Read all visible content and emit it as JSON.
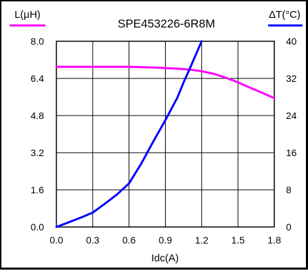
{
  "chart_data": {
    "type": "line",
    "title": "SPE453226-6R8M",
    "xlabel": "Idc(A)",
    "x_ticks": [
      "0.0",
      "0.3",
      "0.6",
      "0.9",
      "1.2",
      "1.5",
      "1.8"
    ],
    "xlim": [
      0,
      1.8
    ],
    "y_left": {
      "label": "L(μH)",
      "ticks": [
        "0.0",
        "1.6",
        "3.2",
        "4.8",
        "6.4",
        "8.0"
      ],
      "ylim": [
        0,
        8.0
      ],
      "color": "#ff00ff"
    },
    "y_right": {
      "label": "ΔT(°C)",
      "ticks": [
        "0",
        "8",
        "16",
        "24",
        "32",
        "40"
      ],
      "ylim": [
        0,
        40
      ],
      "color": "#0000ff"
    },
    "grid": true,
    "series": [
      {
        "axis": "left",
        "color": "#ff00ff",
        "x": [
          0.0,
          0.2,
          0.4,
          0.6,
          0.8,
          1.0,
          1.1,
          1.2,
          1.3,
          1.4,
          1.5,
          1.6,
          1.7,
          1.8
        ],
        "y": [
          6.9,
          6.9,
          6.9,
          6.9,
          6.87,
          6.82,
          6.78,
          6.71,
          6.6,
          6.43,
          6.23,
          6.0,
          5.78,
          5.55
        ]
      },
      {
        "axis": "right",
        "color": "#0000ff",
        "x": [
          0.0,
          0.1,
          0.2,
          0.3,
          0.4,
          0.5,
          0.6,
          0.7,
          0.8,
          0.9,
          1.0,
          1.05,
          1.1,
          1.15,
          1.2
        ],
        "y": [
          0.0,
          1.0,
          2.0,
          3.1,
          5.0,
          7.0,
          9.4,
          13.6,
          18.4,
          23.0,
          27.9,
          31.1,
          34.0,
          37.0,
          40.0
        ]
      }
    ]
  }
}
